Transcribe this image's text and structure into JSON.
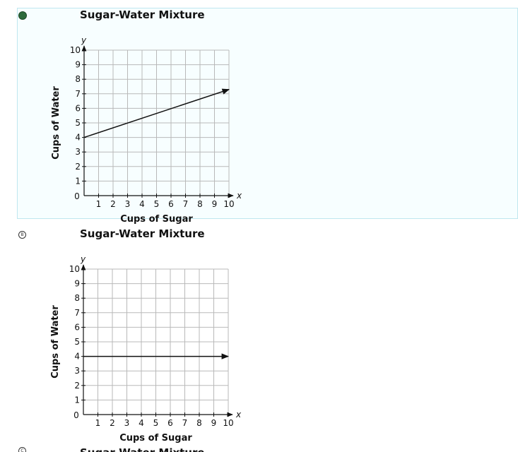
{
  "options": [
    {
      "selected": true,
      "letter": "",
      "chart_data": {
        "type": "line",
        "title": "Sugar-Water Mixture",
        "xlabel": "Cups of Sugar",
        "ylabel": "Cups of Water",
        "x_axis_var": "x",
        "y_axis_var": "y",
        "xlim": [
          0,
          10
        ],
        "ylim": [
          0,
          10
        ],
        "x_ticks": [
          "1",
          "2",
          "3",
          "4",
          "5",
          "6",
          "7",
          "8",
          "9",
          "10"
        ],
        "y_ticks": [
          "1",
          "2",
          "3",
          "4",
          "5",
          "6",
          "7",
          "8",
          "9",
          "10"
        ],
        "origin_label": "0",
        "grid": true,
        "series": [
          {
            "x": [
              0,
              10
            ],
            "y": [
              4,
              7.3
            ],
            "arrow": true
          }
        ]
      }
    },
    {
      "selected": false,
      "letter": "B",
      "chart_data": {
        "type": "line",
        "title": "Sugar-Water Mixture",
        "xlabel": "Cups of Sugar",
        "ylabel": "Cups of Water",
        "x_axis_var": "x",
        "y_axis_var": "y",
        "xlim": [
          0,
          10
        ],
        "ylim": [
          0,
          10
        ],
        "x_ticks": [
          "1",
          "2",
          "3",
          "4",
          "5",
          "6",
          "7",
          "8",
          "9",
          "10"
        ],
        "y_ticks": [
          "1",
          "2",
          "3",
          "4",
          "5",
          "6",
          "7",
          "8",
          "9",
          "10"
        ],
        "origin_label": "0",
        "grid": true,
        "series": [
          {
            "x": [
              0,
              10
            ],
            "y": [
              4,
              4
            ],
            "arrow": true
          }
        ]
      }
    },
    {
      "selected": false,
      "letter": "C",
      "chart_data": {
        "type": "line",
        "title": "Sugar-Water Mixture"
      }
    }
  ]
}
